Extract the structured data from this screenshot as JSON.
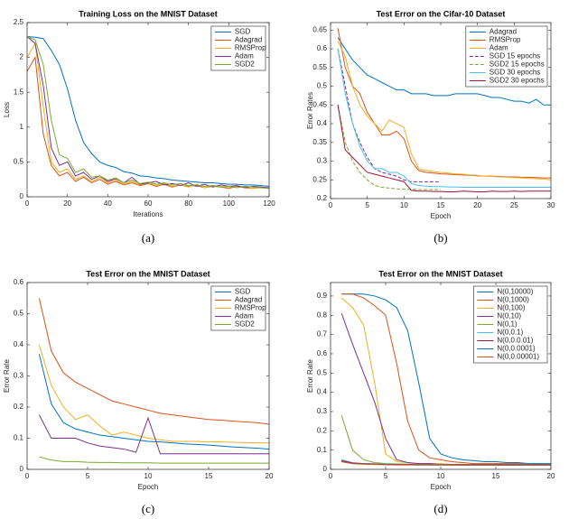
{
  "chart_data": [
    {
      "type": "line",
      "caption": "(a)",
      "title": "Training Loss on the MNIST Dataset",
      "xlabel": "Iterations",
      "ylabel": "Loss",
      "legend": "upper right",
      "xlim": [
        0,
        120
      ],
      "xticks": [
        0,
        20,
        40,
        60,
        80,
        100,
        120
      ],
      "ylim": [
        0,
        2.5
      ],
      "yticks": [
        0,
        0.5,
        1,
        1.5,
        2,
        2.5
      ],
      "x": [
        0,
        4,
        8,
        12,
        16,
        20,
        24,
        28,
        32,
        36,
        40,
        44,
        48,
        52,
        56,
        60,
        64,
        68,
        72,
        76,
        80,
        84,
        88,
        92,
        96,
        100,
        104,
        108,
        112,
        116,
        120
      ],
      "series": [
        {
          "name": "SGD",
          "color": "#0072bd",
          "values": [
            2.3,
            2.29,
            2.27,
            2.1,
            1.9,
            1.55,
            1.1,
            0.78,
            0.62,
            0.5,
            0.45,
            0.42,
            0.36,
            0.34,
            0.3,
            0.29,
            0.27,
            0.26,
            0.24,
            0.23,
            0.22,
            0.21,
            0.2,
            0.2,
            0.19,
            0.18,
            0.18,
            0.17,
            0.17,
            0.16,
            0.15
          ]
        },
        {
          "name": "Adagrad",
          "color": "#d95319",
          "values": [
            1.8,
            2.0,
            0.9,
            0.45,
            0.3,
            0.35,
            0.22,
            0.28,
            0.2,
            0.25,
            0.18,
            0.22,
            0.17,
            0.2,
            0.16,
            0.19,
            0.15,
            0.18,
            0.14,
            0.17,
            0.15,
            0.16,
            0.13,
            0.15,
            0.14,
            0.12,
            0.15,
            0.13,
            0.12,
            0.14,
            0.12
          ]
        },
        {
          "name": "RMSProp",
          "color": "#edb120",
          "values": [
            2.0,
            2.2,
            1.3,
            0.5,
            0.35,
            0.4,
            0.25,
            0.3,
            0.22,
            0.28,
            0.2,
            0.24,
            0.18,
            0.22,
            0.17,
            0.2,
            0.16,
            0.19,
            0.15,
            0.17,
            0.14,
            0.18,
            0.13,
            0.16,
            0.15,
            0.13,
            0.16,
            0.14,
            0.12,
            0.13,
            0.12
          ]
        },
        {
          "name": "Adam",
          "color": "#7e2f8e",
          "values": [
            2.3,
            2.2,
            1.6,
            0.7,
            0.45,
            0.5,
            0.3,
            0.35,
            0.25,
            0.3,
            0.22,
            0.26,
            0.2,
            0.28,
            0.18,
            0.2,
            0.22,
            0.17,
            0.19,
            0.16,
            0.2,
            0.15,
            0.18,
            0.14,
            0.17,
            0.15,
            0.16,
            0.13,
            0.15,
            0.14,
            0.13
          ]
        },
        {
          "name": "SGD2",
          "color": "#77ac30",
          "values": [
            2.3,
            2.25,
            1.9,
            1.1,
            0.6,
            0.55,
            0.35,
            0.4,
            0.28,
            0.3,
            0.24,
            0.27,
            0.2,
            0.24,
            0.19,
            0.21,
            0.18,
            0.2,
            0.17,
            0.19,
            0.16,
            0.17,
            0.15,
            0.16,
            0.14,
            0.15,
            0.13,
            0.15,
            0.14,
            0.13,
            0.12
          ]
        }
      ]
    },
    {
      "type": "line",
      "caption": "(b)",
      "title": "Test Error on the Cifar-10 Dataset",
      "xlabel": "Epoch",
      "ylabel": "Error Rates",
      "legend": "upper right",
      "xlim": [
        0,
        30
      ],
      "xticks": [
        0,
        5,
        10,
        15,
        20,
        25,
        30
      ],
      "ylim": [
        0.2,
        0.67
      ],
      "yticks": [
        0.2,
        0.25,
        0.3,
        0.35,
        0.4,
        0.45,
        0.5,
        0.55,
        0.6,
        0.65
      ],
      "x": [
        1,
        2,
        3,
        4,
        5,
        6,
        7,
        8,
        9,
        10,
        11,
        12,
        13,
        14,
        15,
        16,
        17,
        18,
        19,
        20,
        21,
        22,
        23,
        24,
        25,
        26,
        27,
        28,
        29,
        30
      ],
      "series": [
        {
          "name": "Adagrad",
          "color": "#0072bd",
          "values": [
            0.63,
            0.6,
            0.57,
            0.55,
            0.53,
            0.52,
            0.51,
            0.5,
            0.49,
            0.49,
            0.48,
            0.48,
            0.48,
            0.475,
            0.475,
            0.475,
            0.48,
            0.48,
            0.48,
            0.48,
            0.475,
            0.47,
            0.47,
            0.465,
            0.46,
            0.46,
            0.455,
            0.465,
            0.45,
            0.45
          ]
        },
        {
          "name": "RMSProp",
          "color": "#d95319",
          "values": [
            0.655,
            0.55,
            0.5,
            0.48,
            0.43,
            0.4,
            0.37,
            0.37,
            0.38,
            0.36,
            0.3,
            0.275,
            0.27,
            0.268,
            0.266,
            0.265,
            0.264,
            0.263,
            0.262,
            0.261,
            0.26,
            0.26,
            0.259,
            0.258,
            0.258,
            0.257,
            0.257,
            0.256,
            0.255,
            0.255
          ]
        },
        {
          "name": "Adam",
          "color": "#edb120",
          "values": [
            0.62,
            0.58,
            0.5,
            0.45,
            0.42,
            0.4,
            0.38,
            0.41,
            0.4,
            0.39,
            0.32,
            0.28,
            0.275,
            0.272,
            0.27,
            0.268,
            0.266,
            0.265,
            0.263,
            0.262,
            0.26,
            0.259,
            0.258,
            0.257,
            0.256,
            0.255,
            0.254,
            0.253,
            0.252,
            0.25
          ]
        },
        {
          "name": "SGD 15 epochs",
          "color": "#7e2f8e",
          "dashed": true,
          "values": [
            0.6,
            0.5,
            0.4,
            0.35,
            0.31,
            0.28,
            0.27,
            0.265,
            0.26,
            0.25,
            0.245,
            0.245,
            0.245,
            0.245,
            0.245,
            null,
            null,
            null,
            null,
            null,
            null,
            null,
            null,
            null,
            null,
            null,
            null,
            null,
            null,
            null
          ]
        },
        {
          "name": "SGD2 15 epochs",
          "color": "#77ac30",
          "dashed": true,
          "values": [
            0.45,
            0.35,
            0.3,
            0.27,
            0.25,
            0.235,
            0.23,
            0.228,
            0.226,
            0.225,
            0.225,
            0.224,
            0.224,
            0.224,
            0.224,
            null,
            null,
            null,
            null,
            null,
            null,
            null,
            null,
            null,
            null,
            null,
            null,
            null,
            null,
            null
          ]
        },
        {
          "name": "SGD 30 epochs",
          "color": "#4dbeee",
          "values": [
            0.6,
            0.48,
            0.4,
            0.34,
            0.3,
            0.28,
            0.28,
            0.27,
            0.27,
            0.26,
            0.24,
            0.235,
            0.233,
            0.232,
            0.232,
            0.231,
            0.231,
            0.23,
            0.23,
            0.23,
            0.23,
            0.23,
            0.23,
            0.23,
            0.23,
            0.23,
            0.23,
            0.23,
            0.23,
            0.23
          ]
        },
        {
          "name": "SGD2 30 epochs",
          "color": "#a2142f",
          "values": [
            0.45,
            0.33,
            0.31,
            0.29,
            0.27,
            0.265,
            0.26,
            0.255,
            0.25,
            0.245,
            0.222,
            0.22,
            0.22,
            0.219,
            0.219,
            0.218,
            0.218,
            0.22,
            0.219,
            0.218,
            0.218,
            0.22,
            0.219,
            0.219,
            0.22,
            0.219,
            0.22,
            0.22,
            0.22,
            0.22
          ]
        }
      ]
    },
    {
      "type": "line",
      "caption": "(c)",
      "title": "Test Error on the MNIST Dataset",
      "xlabel": "Epoch",
      "ylabel": "Error Rate",
      "legend": "upper right",
      "xlim": [
        0,
        20
      ],
      "xticks": [
        0,
        5,
        10,
        15,
        20
      ],
      "ylim": [
        0,
        0.6
      ],
      "yticks": [
        0,
        0.1,
        0.2,
        0.3,
        0.4,
        0.5,
        0.6
      ],
      "x": [
        1,
        2,
        3,
        4,
        5,
        6,
        7,
        8,
        9,
        10,
        11,
        12,
        13,
        14,
        15,
        16,
        17,
        18,
        19,
        20
      ],
      "series": [
        {
          "name": "SGD",
          "color": "#0072bd",
          "values": [
            0.37,
            0.21,
            0.15,
            0.13,
            0.12,
            0.11,
            0.105,
            0.1,
            0.095,
            0.09,
            0.088,
            0.085,
            0.082,
            0.08,
            0.078,
            0.075,
            0.072,
            0.07,
            0.068,
            0.065
          ]
        },
        {
          "name": "Adagrad",
          "color": "#d95319",
          "values": [
            0.55,
            0.38,
            0.31,
            0.28,
            0.26,
            0.24,
            0.22,
            0.21,
            0.2,
            0.19,
            0.18,
            0.175,
            0.17,
            0.165,
            0.16,
            0.158,
            0.155,
            0.152,
            0.15,
            0.145
          ]
        },
        {
          "name": "RMSProp",
          "color": "#edb120",
          "values": [
            0.4,
            0.27,
            0.2,
            0.16,
            0.175,
            0.14,
            0.11,
            0.12,
            0.11,
            0.1,
            0.095,
            0.09,
            0.09,
            0.09,
            0.088,
            0.088,
            0.087,
            0.086,
            0.085,
            0.085
          ]
        },
        {
          "name": "Adam",
          "color": "#7e2f8e",
          "values": [
            0.175,
            0.1,
            0.1,
            0.1,
            0.085,
            0.075,
            0.07,
            0.065,
            0.055,
            0.165,
            0.05,
            0.05,
            0.05,
            0.05,
            0.05,
            0.05,
            0.05,
            0.05,
            0.05,
            0.05
          ]
        },
        {
          "name": "SGD2",
          "color": "#77ac30",
          "values": [
            0.04,
            0.03,
            0.025,
            0.025,
            0.023,
            0.022,
            0.022,
            0.021,
            0.021,
            0.021,
            0.02,
            0.02,
            0.02,
            0.02,
            0.02,
            0.02,
            0.02,
            0.02,
            0.02,
            0.02
          ]
        }
      ]
    },
    {
      "type": "line",
      "caption": "(d)",
      "title": "Test Error on the MNIST Dataset",
      "xlabel": "Epoch",
      "ylabel": "Error Rate",
      "legend": "upper right",
      "xlim": [
        0,
        20
      ],
      "xticks": [
        0,
        5,
        10,
        15,
        20
      ],
      "ylim": [
        0,
        0.97
      ],
      "yticks": [
        0,
        0.1,
        0.2,
        0.3,
        0.4,
        0.5,
        0.6,
        0.7,
        0.8,
        0.9
      ],
      "x": [
        1,
        2,
        3,
        4,
        5,
        6,
        7,
        8,
        9,
        10,
        11,
        12,
        13,
        14,
        15,
        16,
        17,
        18,
        19,
        20
      ],
      "series": [
        {
          "name": "N(0,10000)",
          "color": "#0072bd",
          "values": [
            0.91,
            0.91,
            0.91,
            0.9,
            0.88,
            0.84,
            0.72,
            0.45,
            0.16,
            0.08,
            0.06,
            0.05,
            0.045,
            0.04,
            0.04,
            0.035,
            0.035,
            0.03,
            0.03,
            0.03
          ]
        },
        {
          "name": "N(0,1000)",
          "color": "#d95319",
          "values": [
            0.91,
            0.91,
            0.89,
            0.85,
            0.8,
            0.55,
            0.25,
            0.1,
            0.06,
            0.05,
            0.04,
            0.035,
            0.03,
            0.03,
            0.03,
            0.03,
            0.03,
            0.025,
            0.025,
            0.025
          ]
        },
        {
          "name": "N(0,100)",
          "color": "#edb120",
          "values": [
            0.89,
            0.84,
            0.75,
            0.45,
            0.08,
            0.04,
            0.035,
            0.03,
            0.03,
            0.03,
            0.025,
            0.025,
            0.025,
            0.025,
            0.025,
            0.025,
            0.025,
            0.025,
            0.025,
            0.025
          ]
        },
        {
          "name": "N(0,10)",
          "color": "#7e2f8e",
          "values": [
            0.81,
            0.65,
            0.5,
            0.35,
            0.16,
            0.05,
            0.035,
            0.03,
            0.03,
            0.025,
            0.025,
            0.025,
            0.025,
            0.025,
            0.025,
            0.025,
            0.025,
            0.025,
            0.025,
            0.025
          ]
        },
        {
          "name": "N(0,1)",
          "color": "#77ac30",
          "values": [
            0.28,
            0.1,
            0.05,
            0.035,
            0.03,
            0.028,
            0.027,
            0.026,
            0.025,
            0.025,
            0.025,
            0.025,
            0.024,
            0.024,
            0.024,
            0.024,
            0.024,
            0.024,
            0.024,
            0.024
          ]
        },
        {
          "name": "N(0,0.1)",
          "color": "#4dbeee",
          "values": [
            0.05,
            0.035,
            0.03,
            0.028,
            0.027,
            0.026,
            0.025,
            0.025,
            0.025,
            0.025,
            0.024,
            0.024,
            0.024,
            0.024,
            0.024,
            0.024,
            0.024,
            0.024,
            0.024,
            0.024
          ]
        },
        {
          "name": "N(0,0.0.01)",
          "color": "#a2142f",
          "values": [
            0.045,
            0.033,
            0.03,
            0.028,
            0.026,
            0.025,
            0.025,
            0.024,
            0.024,
            0.024,
            0.024,
            0.023,
            0.023,
            0.023,
            0.023,
            0.023,
            0.023,
            0.023,
            0.023,
            0.023
          ]
        },
        {
          "name": "N(0,0.0001)",
          "color": "#0072bd",
          "values": [
            0.04,
            0.03,
            0.028,
            0.026,
            0.025,
            0.024,
            0.024,
            0.023,
            0.023,
            0.023,
            0.022,
            0.022,
            0.022,
            0.022,
            0.022,
            0.022,
            0.022,
            0.022,
            0.022,
            0.022
          ]
        },
        {
          "name": "N(0,0.00001)",
          "color": "#d95319",
          "values": [
            0.04,
            0.03,
            0.027,
            0.025,
            0.024,
            0.023,
            0.023,
            0.022,
            0.022,
            0.022,
            0.022,
            0.021,
            0.021,
            0.021,
            0.021,
            0.021,
            0.021,
            0.021,
            0.021,
            0.021
          ]
        }
      ]
    }
  ]
}
